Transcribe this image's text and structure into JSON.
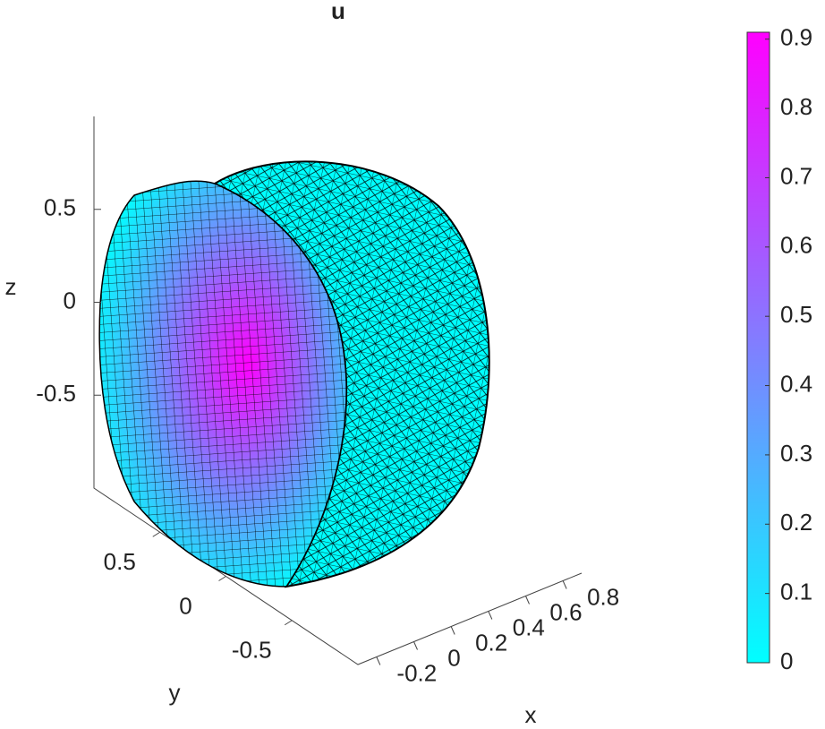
{
  "chart_data": {
    "type": "surface3d",
    "title": "u",
    "xlabel": "x",
    "ylabel": "y",
    "zlabel": "z",
    "xlim": [
      -0.3,
      0.9
    ],
    "xticks": [
      -0.2,
      0,
      0.2,
      0.4,
      0.6,
      0.8
    ],
    "ylim": [
      -1,
      1
    ],
    "yticks": [
      0.5,
      0,
      -0.5
    ],
    "zlim": [
      -1,
      1
    ],
    "zticks": [
      0.5,
      0,
      -0.5
    ],
    "colormap": [
      "#00ffff",
      "#ff00ff"
    ],
    "clim": [
      0,
      0.91
    ],
    "cticks": [
      0,
      0.1,
      0.2,
      0.3,
      0.4,
      0.5,
      0.6,
      0.7,
      0.8,
      0.9
    ]
  }
}
